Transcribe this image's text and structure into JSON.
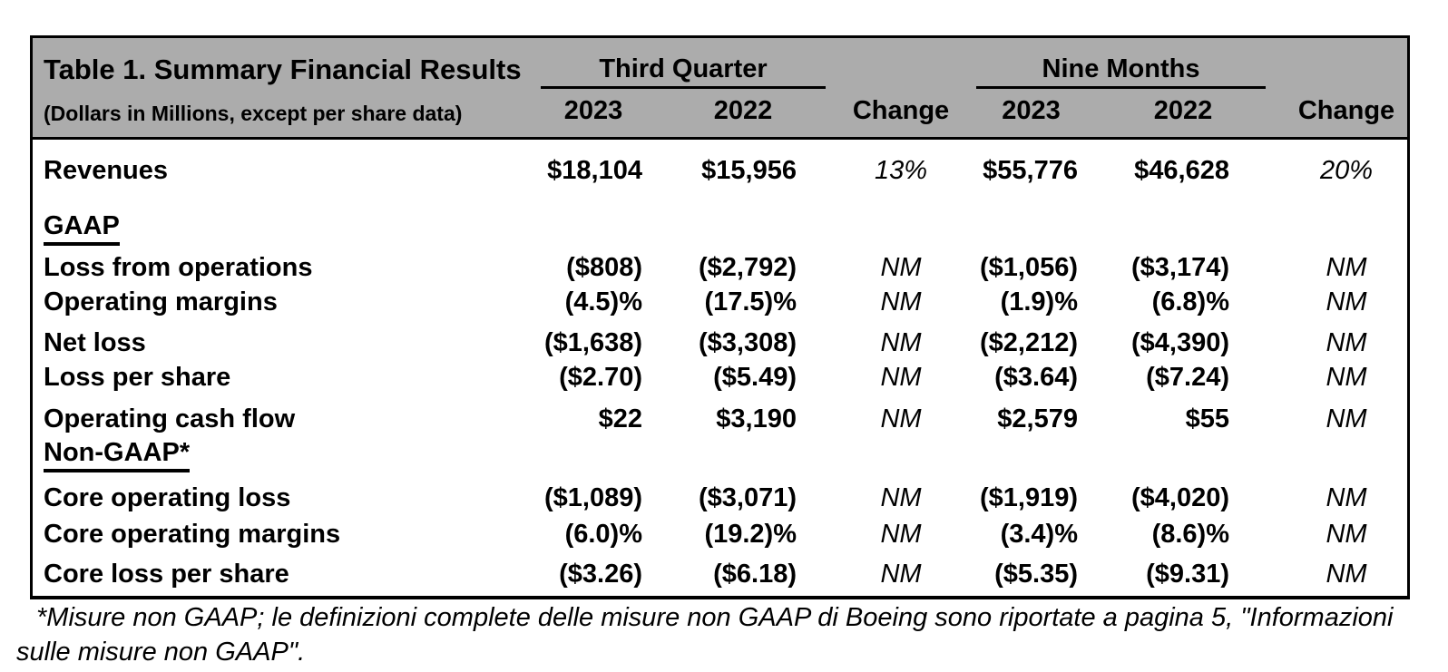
{
  "table": {
    "title": "Table 1. Summary Financial Results",
    "subtitle": "(Dollars in Millions, except per share data)",
    "col_groups": [
      {
        "label": "Third Quarter",
        "years": [
          "2023",
          "2022"
        ],
        "change_label": "Change"
      },
      {
        "label": "Nine Months",
        "years": [
          "2023",
          "2022"
        ],
        "change_label": "Change"
      }
    ],
    "rows": [
      {
        "label": "Revenues",
        "type": "data",
        "values": [
          "$18,104",
          "$15,956",
          "13%",
          "$55,776",
          "$46,628",
          "20%"
        ]
      },
      {
        "label": "GAAP",
        "type": "section",
        "values": [
          "",
          "",
          "",
          "",
          "",
          ""
        ]
      },
      {
        "label": "Loss from operations",
        "type": "data",
        "values": [
          "($808)",
          "($2,792)",
          "NM",
          "($1,056)",
          "($3,174)",
          "NM"
        ]
      },
      {
        "label": "Operating margins",
        "type": "data",
        "values": [
          "(4.5)%",
          "(17.5)%",
          "NM",
          "(1.9)%",
          "(6.8)%",
          "NM"
        ]
      },
      {
        "label": "Net loss",
        "type": "data",
        "values": [
          "($1,638)",
          "($3,308)",
          "NM",
          "($2,212)",
          "($4,390)",
          "NM"
        ]
      },
      {
        "label": "Loss per share",
        "type": "data",
        "values": [
          "($2.70)",
          "($5.49)",
          "NM",
          "($3.64)",
          "($7.24)",
          "NM"
        ]
      },
      {
        "label": "Operating cash flow",
        "type": "data",
        "values": [
          "$22",
          "$3,190",
          "NM",
          "$2,579",
          "$55",
          "NM"
        ]
      },
      {
        "label": "Non-GAAP*",
        "type": "section",
        "values": [
          "",
          "",
          "",
          "",
          "",
          ""
        ]
      },
      {
        "label": "Core operating loss",
        "type": "data",
        "values": [
          "($1,089)",
          "($3,071)",
          "NM",
          "($1,919)",
          "($4,020)",
          "NM"
        ]
      },
      {
        "label": "Core operating margins",
        "type": "data",
        "values": [
          "(6.0)%",
          "(19.2)%",
          "NM",
          "(3.4)%",
          "(8.6)%",
          "NM"
        ]
      },
      {
        "label": "Core loss per share",
        "type": "data",
        "values": [
          "($3.26)",
          "($6.18)",
          "NM",
          "($5.35)",
          "($9.31)",
          "NM"
        ]
      }
    ]
  },
  "footnote": "*Misure non GAAP; le definizioni complete delle misure non GAAP di Boeing sono riportate a pagina 5, \"Informazioni sulle misure non GAAP\".",
  "colors": {
    "header_bg": "#ACACAC",
    "border": "#000000",
    "text": "#000000",
    "page_bg": "#FFFFFF"
  }
}
